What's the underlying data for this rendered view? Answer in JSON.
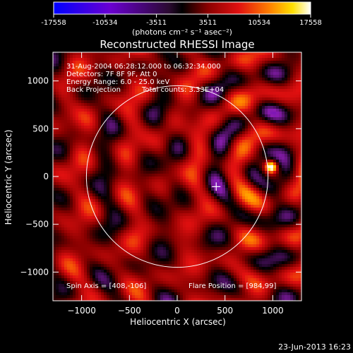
{
  "colorbar": {
    "tick_values": [
      -17558,
      -10534,
      -3511,
      3511,
      10534,
      17558
    ],
    "tick_labels": [
      "-17558",
      "-10534",
      "-3511",
      "3511",
      "10534",
      "17558"
    ],
    "unit_label": "(photons cm⁻² s⁻¹ asec⁻²)",
    "colormap": [
      "#0000ff",
      "#5a00c8",
      "#8a1db0",
      "#000000",
      "#8a0000",
      "#e21010",
      "#ff8000",
      "#ffe000",
      "#ffffff"
    ]
  },
  "chart_data": {
    "type": "heatmap",
    "title": "Reconstructed RHESSI Image",
    "xlabel": "Heliocentric X (arcsec)",
    "ylabel": "Heliocentric Y (arcsec)",
    "xlim": [
      -1300,
      1300
    ],
    "ylim": [
      -1300,
      1300
    ],
    "xticks": [
      -1000,
      -500,
      0,
      500,
      1000
    ],
    "yticks": [
      -1000,
      -500,
      0,
      500,
      1000
    ],
    "xtick_labels": [
      "−1000",
      "−500",
      "0",
      "500",
      "1000"
    ],
    "ytick_labels": [
      "−1000",
      "−500",
      "0",
      "500",
      "1000"
    ],
    "value_range": [
      -17558,
      17558
    ],
    "solar_limb": {
      "center": [
        0,
        0
      ],
      "radius": 950
    },
    "spin_axis_marker": [
      408,
      -106
    ],
    "flare_source": {
      "x": 984,
      "y": 99,
      "peak": 17558
    },
    "annotations": [
      "31-Aug-2004 06:28:12.000 to 06:32:34.000",
      "Detectors: 7F 8F 9F, Att 0",
      "Energy Range: 6.0 - 25.0 keV",
      "Back Projection",
      "Total counts: 3.33E+04"
    ],
    "footer_left": "Spin Axis = [408,-106]",
    "footer_right": "Flare Position = [984,99]"
  },
  "timestamp": "23-Jun-2013 16:23"
}
